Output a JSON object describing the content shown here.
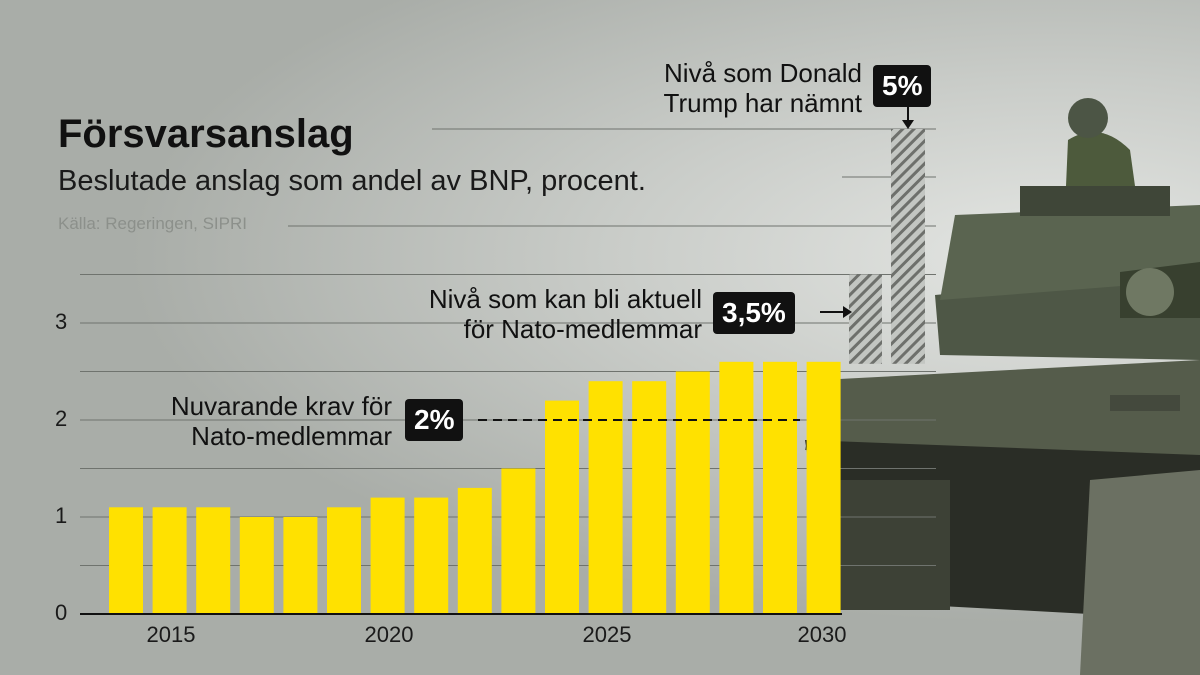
{
  "header": {
    "title": "Försvarsanslag",
    "subtitle": "Beslutade anslag som andel av BNP, procent.",
    "source": "Källa: Regeringen, SIPRI"
  },
  "annotations": {
    "trump_text_1": "Nivå som Donald",
    "trump_text_2": "Trump har nämnt",
    "trump_badge": "5%",
    "nato_future_text_1": "Nivå som kan bli aktuell",
    "nato_future_text_2": "för Nato-medlemmar",
    "nato_future_badge": "3,5%",
    "nato_current_text_1": "Nuvarande krav för",
    "nato_current_text_2": "Nato-medlemmar",
    "nato_current_badge": "2%"
  },
  "colors": {
    "bar": "#ffe100",
    "background": "#a9ada8",
    "badge": "#111111"
  },
  "chart_data": {
    "type": "bar",
    "title": "Försvarsanslag",
    "subtitle": "Beslutade anslag som andel av BNP, procent.",
    "x": [
      2014,
      2015,
      2016,
      2017,
      2018,
      2019,
      2020,
      2021,
      2022,
      2023,
      2024,
      2025,
      2026,
      2027,
      2028,
      2029,
      2030
    ],
    "values": [
      1.1,
      1.1,
      1.1,
      1.0,
      1.0,
      1.1,
      1.2,
      1.2,
      1.3,
      1.5,
      2.2,
      2.4,
      2.4,
      2.5,
      2.6,
      2.6,
      2.6
    ],
    "x_ticks": [
      "2015",
      "2020",
      "2025",
      "2030"
    ],
    "y_ticks": [
      "0",
      "1",
      "2",
      "3"
    ],
    "ylim": [
      0,
      5
    ],
    "reference_levels": [
      {
        "label": "Nuvarande krav för Nato-medlemmar",
        "value": 2,
        "badge": "2%"
      },
      {
        "label": "Nivå som kan bli aktuell för Nato-medlemmar",
        "value": 3.5,
        "badge": "3,5%"
      },
      {
        "label": "Nivå som Donald Trump har nämnt",
        "value": 5,
        "badge": "5%"
      }
    ],
    "grid": true
  }
}
